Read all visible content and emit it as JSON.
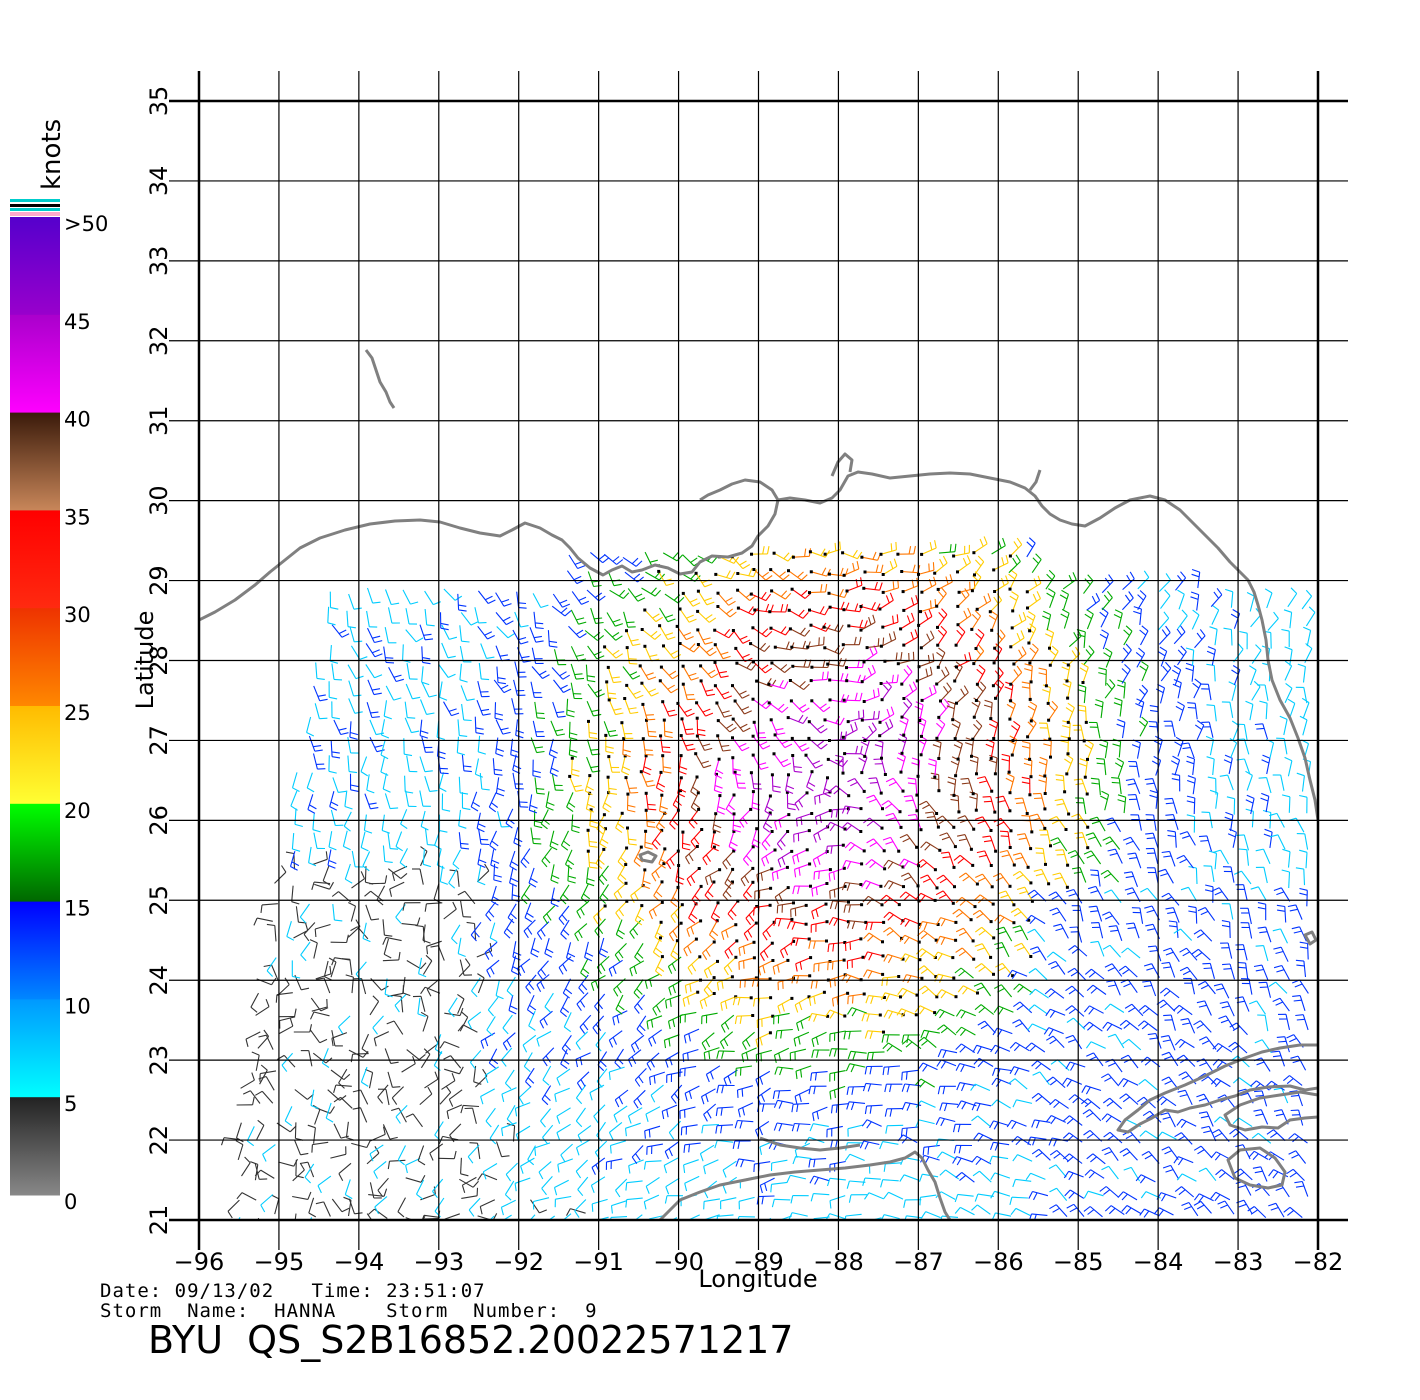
{
  "colorbar": {
    "unit_label": "knots",
    "tick_labels": [
      ">50",
      "45",
      "40",
      "35",
      "30",
      "25",
      "20",
      "15",
      "10",
      "5",
      "0"
    ],
    "segments": [
      {
        "from": 50,
        "to": 45,
        "color_top": "#5500cc",
        "color_bottom": "#9900cc"
      },
      {
        "from": 45,
        "to": 40,
        "color_top": "#aa00cc",
        "color_bottom": "#ff00ff"
      },
      {
        "from": 40,
        "to": 35,
        "color_top": "#3a1a0a",
        "color_bottom": "#c9875a"
      },
      {
        "from": 35,
        "to": 30,
        "color_top": "#ff0000",
        "color_bottom": "#ff2a10"
      },
      {
        "from": 30,
        "to": 25,
        "color_top": "#ee3300",
        "color_bottom": "#ff8800"
      },
      {
        "from": 25,
        "to": 20,
        "color_top": "#ffbb00",
        "color_bottom": "#ffff33"
      },
      {
        "from": 20,
        "to": 15,
        "color_top": "#00ff00",
        "color_bottom": "#006600"
      },
      {
        "from": 15,
        "to": 10,
        "color_top": "#0000ff",
        "color_bottom": "#0088ff"
      },
      {
        "from": 10,
        "to": 5,
        "color_top": "#0099ff",
        "color_bottom": "#00ffff"
      },
      {
        "from": 5,
        "to": 0,
        "color_top": "#222222",
        "color_bottom": "#888888"
      }
    ]
  },
  "axes": {
    "xlabel": "Longitude",
    "ylabel": "Latitude",
    "x_ticks": [
      "−96",
      "−95",
      "−94",
      "−93",
      "−92",
      "−91",
      "−90",
      "−89",
      "−88",
      "−87",
      "−86",
      "−85",
      "−84",
      "−83",
      "−82"
    ],
    "y_ticks": [
      "21",
      "22",
      "23",
      "24",
      "25",
      "26",
      "27",
      "28",
      "29",
      "30",
      "31",
      "32",
      "33",
      "34",
      "35"
    ],
    "lon_range": [
      -96,
      -82
    ],
    "lat_range": [
      21,
      35
    ]
  },
  "footer": {
    "line1": "Date: 09/13/02   Time: 23:51:07",
    "line2": "Storm  Name:  HANNA    Storm  Number:  9",
    "product_id": "BYU  QS_S2B16852.20022571217"
  },
  "colors": {
    "coastline": "#808080",
    "grid": "#000000"
  }
}
